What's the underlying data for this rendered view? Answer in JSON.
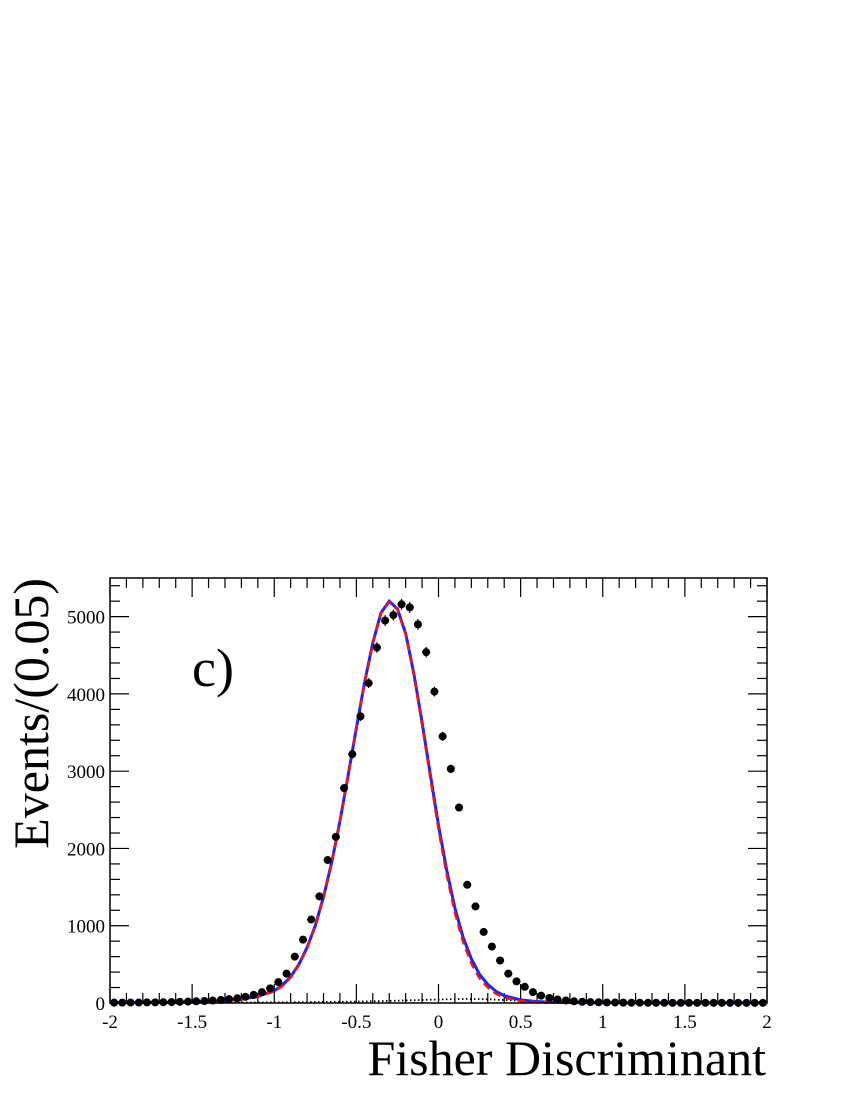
{
  "chart_data": {
    "type": "scatter",
    "panel_label": "c)",
    "xlabel": "Fisher Discriminant",
    "ylabel": "Events/(0.05)",
    "xlim": [
      -2,
      2
    ],
    "ylim": [
      0,
      5500
    ],
    "x_ticks": [
      -2,
      -1.5,
      -1,
      -0.5,
      0,
      0.5,
      1,
      1.5,
      2
    ],
    "x_tick_labels": [
      "-2",
      "-1.5",
      "-1",
      "-0.5",
      "0",
      "0.5",
      "1",
      "1.5",
      "2"
    ],
    "y_ticks": [
      0,
      1000,
      2000,
      3000,
      4000,
      5000
    ],
    "y_tick_labels": [
      "0",
      "1000",
      "2000",
      "3000",
      "4000",
      "5000"
    ],
    "grid": false,
    "legend": "none",
    "series": [
      {
        "kind": "data-points",
        "color": "#000000",
        "x": [
          -1.975,
          -1.925,
          -1.875,
          -1.825,
          -1.775,
          -1.725,
          -1.675,
          -1.625,
          -1.575,
          -1.525,
          -1.475,
          -1.425,
          -1.375,
          -1.325,
          -1.275,
          -1.225,
          -1.175,
          -1.125,
          -1.075,
          -1.025,
          -0.975,
          -0.925,
          -0.875,
          -0.825,
          -0.775,
          -0.725,
          -0.675,
          -0.625,
          -0.575,
          -0.525,
          -0.475,
          -0.425,
          -0.375,
          -0.325,
          -0.275,
          -0.225,
          -0.175,
          -0.125,
          -0.075,
          -0.025,
          0.025,
          0.075,
          0.125,
          0.175,
          0.225,
          0.275,
          0.325,
          0.375,
          0.425,
          0.475,
          0.525,
          0.575,
          0.625,
          0.675,
          0.725,
          0.775,
          0.825,
          0.875,
          0.925,
          0.975,
          1.025,
          1.075,
          1.125,
          1.175,
          1.225,
          1.275,
          1.325,
          1.375,
          1.425,
          1.475,
          1.525,
          1.575,
          1.625,
          1.675,
          1.725,
          1.775,
          1.825,
          1.875,
          1.925,
          1.975
        ],
        "y": [
          5,
          5,
          6,
          6,
          8,
          8,
          10,
          12,
          15,
          18,
          22,
          26,
          32,
          40,
          50,
          62,
          80,
          105,
          140,
          190,
          270,
          380,
          600,
          820,
          1080,
          1380,
          1850,
          2150,
          2780,
          3220,
          3710,
          4140,
          4600,
          4950,
          5020,
          5160,
          5120,
          4900,
          4540,
          4030,
          3450,
          3030,
          2530,
          1530,
          1250,
          920,
          730,
          550,
          380,
          280,
          210,
          140,
          95,
          65,
          45,
          32,
          22,
          16,
          12,
          9,
          7,
          6,
          5,
          4,
          4,
          3,
          3,
          3,
          2,
          2,
          2,
          2,
          2,
          2,
          2,
          2,
          2,
          2,
          2,
          2
        ]
      },
      {
        "kind": "total-fit",
        "color": "#1f1fff",
        "style": "solid",
        "x": [
          -2,
          -1.8,
          -1.6,
          -1.4,
          -1.3,
          -1.2,
          -1.1,
          -1.0,
          -0.95,
          -0.9,
          -0.85,
          -0.8,
          -0.75,
          -0.7,
          -0.65,
          -0.6,
          -0.55,
          -0.5,
          -0.45,
          -0.4,
          -0.35,
          -0.3,
          -0.25,
          -0.2,
          -0.15,
          -0.1,
          -0.05,
          0,
          0.05,
          0.1,
          0.15,
          0.2,
          0.25,
          0.3,
          0.35,
          0.4,
          0.5,
          0.6,
          0.7,
          0.8,
          1.0,
          1.2,
          1.5,
          2
        ],
        "y": [
          5,
          6,
          10,
          20,
          30,
          50,
          85,
          160,
          230,
          340,
          500,
          720,
          1000,
          1370,
          1820,
          2350,
          2950,
          3560,
          4150,
          4660,
          5050,
          5200,
          5100,
          4780,
          4260,
          3630,
          2960,
          2300,
          1720,
          1230,
          850,
          570,
          370,
          240,
          150,
          95,
          40,
          18,
          10,
          6,
          4,
          3,
          2,
          2
        ]
      },
      {
        "kind": "signal-fit",
        "color": "#e8141e",
        "style": "dashed",
        "x": [
          -2,
          -1.8,
          -1.6,
          -1.4,
          -1.3,
          -1.2,
          -1.1,
          -1.0,
          -0.95,
          -0.9,
          -0.85,
          -0.8,
          -0.75,
          -0.7,
          -0.65,
          -0.6,
          -0.55,
          -0.5,
          -0.45,
          -0.4,
          -0.35,
          -0.3,
          -0.25,
          -0.2,
          -0.15,
          -0.1,
          -0.05,
          0,
          0.05,
          0.1,
          0.15,
          0.2,
          0.25,
          0.3,
          0.35,
          0.4,
          0.5,
          0.6,
          0.7,
          0.8,
          1.0,
          1.2,
          1.5,
          2
        ],
        "y": [
          4,
          5,
          8,
          17,
          26,
          45,
          80,
          150,
          220,
          330,
          490,
          710,
          990,
          1360,
          1810,
          2340,
          2940,
          3550,
          4140,
          4650,
          5040,
          5190,
          5090,
          4770,
          4240,
          3600,
          2920,
          2250,
          1660,
          1170,
          790,
          510,
          320,
          200,
          120,
          70,
          25,
          10,
          5,
          3,
          2,
          1,
          1,
          1
        ]
      },
      {
        "kind": "background-fit",
        "color": "#000000",
        "style": "dotted",
        "x": [
          -2,
          -1.5,
          -1,
          -0.5,
          -0.25,
          0,
          0.1,
          0.2,
          0.3,
          0.5,
          0.7,
          1,
          1.5,
          2
        ],
        "y": [
          1,
          3,
          8,
          18,
          30,
          45,
          50,
          52,
          48,
          30,
          15,
          5,
          2,
          1
        ]
      }
    ]
  }
}
